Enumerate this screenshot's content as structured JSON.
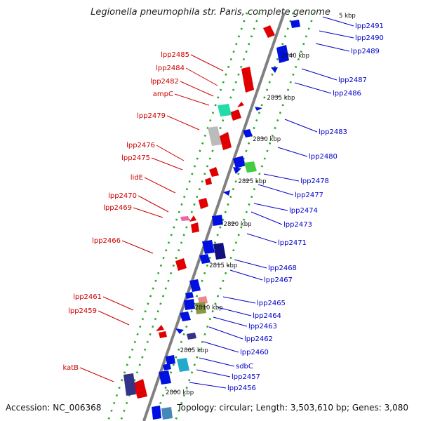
{
  "title": "Legionella pneumophila str. Paris, complete genome",
  "footer": {
    "accession": "Accession: NC_006368",
    "topology": "Topology: circular; Length: 3,503,610 bp; Genes: 3,080"
  },
  "colors": {
    "reverse": "#cc0000",
    "forward": "#0000c8",
    "backbone": "#808080",
    "track_dots": "#22aa22"
  },
  "ticks": [
    {
      "kb": 2840,
      "label": "2840 kbp"
    },
    {
      "kb": 2835,
      "label": "2835 kbp"
    },
    {
      "kb": 2830,
      "label": "2830 kbp"
    },
    {
      "kb": 2825,
      "label": "2825 kbp"
    },
    {
      "kb": 2820,
      "label": "2820 kbp"
    },
    {
      "kb": 2815,
      "label": "2815 kbp"
    },
    {
      "kb": 2810,
      "label": "2810 kbp"
    },
    {
      "kb": 2805,
      "label": "2805 kbp"
    },
    {
      "kb": 2800,
      "label": "2800 kbp"
    }
  ],
  "ticks_partial": [
    {
      "label": "5 kbp"
    }
  ],
  "genes_reverse": [
    "lpp2485",
    "lpp2484",
    "lpp2482",
    "ampC",
    "lpp2479",
    "lpp2476",
    "lpp2475",
    "lidE",
    "lpp2470",
    "lpp2469",
    "lpp2466",
    "lpp2461",
    "lpp2459",
    "katB"
  ],
  "genes_forward": [
    "lpp2491",
    "lpp2490",
    "lpp2489",
    "lpp2487",
    "lpp2486",
    "lpp2483",
    "lpp2480",
    "lpp2478",
    "lpp2477",
    "lpp2474",
    "lpp2473",
    "lpp2471",
    "lpp2468",
    "lpp2467",
    "lpp2465",
    "lpp2464",
    "lpp2463",
    "lpp2462",
    "lpp2460",
    "sdbC",
    "lpp2457",
    "lpp2456"
  ]
}
